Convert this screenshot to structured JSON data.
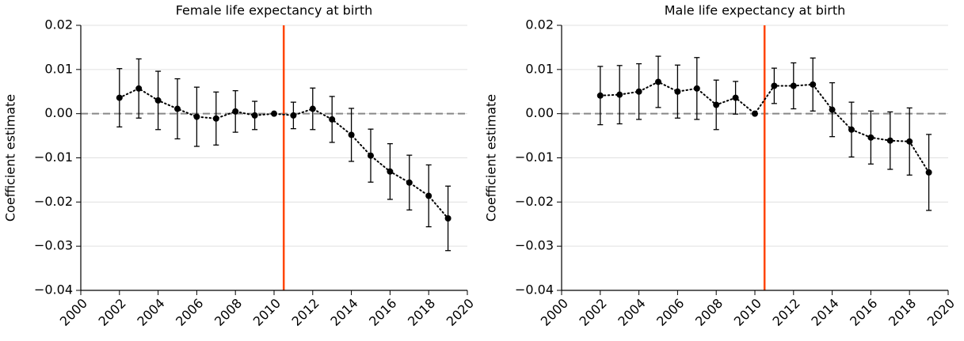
{
  "chart_data": [
    {
      "type": "line",
      "title": "Female life expectancy at birth",
      "ylabel": "Coefficient estimate",
      "x": [
        2002,
        2003,
        2004,
        2005,
        2006,
        2007,
        2008,
        2009,
        2010,
        2011,
        2012,
        2013,
        2014,
        2015,
        2016,
        2017,
        2018,
        2019
      ],
      "series": [
        {
          "color": "#000000",
          "values": [
            0.0036,
            0.0057,
            0.003,
            0.0011,
            -0.0007,
            -0.0011,
            0.0005,
            -0.0004,
            0,
            -0.0004,
            0.0011,
            -0.0013,
            -0.0048,
            -0.0095,
            -0.0131,
            -0.0156,
            -0.0186,
            -0.0237
          ],
          "errors": [
            0.0066,
            0.0067,
            0.0066,
            0.0068,
            0.0067,
            0.006,
            0.0047,
            0.0032,
            null,
            0.003,
            0.0047,
            0.0052,
            0.006,
            0.006,
            0.0063,
            0.0062,
            0.007,
            0.0073
          ]
        }
      ],
      "xlim": [
        2000,
        2020
      ],
      "xticks": [
        2000,
        2002,
        2004,
        2006,
        2008,
        2010,
        2012,
        2014,
        2016,
        2018,
        2020
      ],
      "ylim": [
        -0.04,
        0.02
      ],
      "yticks": [
        0.02,
        0.01,
        {
          "value": 0,
          "label": "0.00"
        },
        {
          "value": -0.01,
          "label": "−0.01"
        },
        {
          "value": -0.02,
          "label": "−0.02"
        },
        {
          "value": -0.03,
          "label": "−0.03"
        },
        {
          "value": -0.04,
          "label": "−0.04"
        }
      ],
      "grid": true,
      "hline": 0,
      "vline": 2010.5,
      "vline_color": "#ff4500"
    },
    {
      "type": "line",
      "title": "Male life expectancy at birth",
      "ylabel": "Coefficient estimate",
      "x": [
        2002,
        2003,
        2004,
        2005,
        2006,
        2007,
        2008,
        2009,
        2010,
        2011,
        2012,
        2013,
        2014,
        2015,
        2016,
        2017,
        2018,
        2019
      ],
      "series": [
        {
          "color": "#000000",
          "values": [
            0.0041,
            0.0043,
            0.005,
            0.0072,
            0.005,
            0.0057,
            0.002,
            0.0036,
            0,
            0.0063,
            0.0063,
            0.0066,
            0.0009,
            -0.0036,
            -0.0054,
            -0.0061,
            -0.0063,
            -0.0133
          ],
          "errors": [
            0.0066,
            0.0066,
            0.0063,
            0.0058,
            0.006,
            0.007,
            0.0056,
            0.0037,
            null,
            0.004,
            0.0052,
            0.006,
            0.0061,
            0.0062,
            0.006,
            0.0065,
            0.0076,
            0.0086
          ]
        }
      ],
      "xlim": [
        2000,
        2020
      ],
      "xticks": [
        2000,
        2002,
        2004,
        2006,
        2008,
        2010,
        2012,
        2014,
        2016,
        2018,
        2020
      ],
      "ylim": [
        -0.04,
        0.02
      ],
      "yticks": [
        0.02,
        0.01,
        {
          "value": 0,
          "label": "0.00"
        },
        {
          "value": -0.01,
          "label": "−0.01"
        },
        {
          "value": -0.02,
          "label": "−0.02"
        },
        {
          "value": -0.03,
          "label": "−0.03"
        },
        {
          "value": -0.04,
          "label": "−0.04"
        }
      ],
      "grid": true,
      "hline": 0,
      "vline": 2010.5,
      "vline_color": "#ff4500"
    }
  ]
}
